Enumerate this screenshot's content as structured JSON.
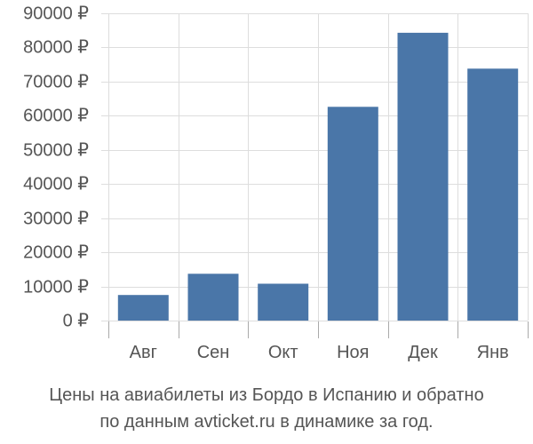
{
  "chart_data": {
    "type": "bar",
    "categories": [
      "Авг",
      "Сен",
      "Окт",
      "Ноя",
      "Дек",
      "Янв"
    ],
    "values": [
      7500,
      13700,
      10800,
      62600,
      84300,
      73800
    ],
    "ylim": [
      0,
      90000
    ],
    "yticks": [
      "0 ₽",
      "10000 ₽",
      "20000 ₽",
      "30000 ₽",
      "40000 ₽",
      "50000 ₽",
      "60000 ₽",
      "70000 ₽",
      "80000 ₽",
      "90000 ₽"
    ],
    "ytick_values": [
      0,
      10000,
      20000,
      30000,
      40000,
      50000,
      60000,
      70000,
      80000,
      90000
    ],
    "grid": true,
    "colors": {
      "bar": "#4a76a8",
      "grid": "#dddddd",
      "axis": "#aaaaaa",
      "text": "#555555"
    }
  },
  "caption": {
    "line1": "Цены на авиабилеты из Бордо в Испанию и обратно",
    "line2": "по данным avticket.ru в динамике за год."
  }
}
